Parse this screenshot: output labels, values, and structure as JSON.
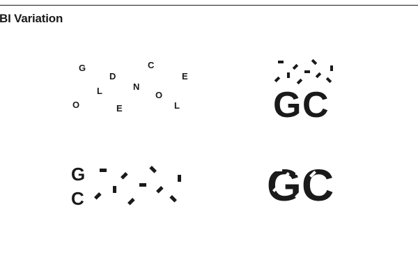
{
  "page": {
    "title": "BI Variation",
    "ink_color": "#1a1a1a",
    "background_color": "#ffffff"
  },
  "variations": [
    {
      "name": "scattered-letters",
      "letters": [
        "G",
        "D",
        "C",
        "E",
        "L",
        "N",
        "O",
        "O",
        "E",
        "L"
      ]
    },
    {
      "name": "stacked-gc-dashes",
      "letters": [
        "G",
        "C"
      ]
    },
    {
      "name": "gc-under-dashes",
      "letters": [
        "G",
        "C"
      ]
    },
    {
      "name": "gc-dash-cutout",
      "letters": [
        "G",
        "C"
      ]
    }
  ]
}
